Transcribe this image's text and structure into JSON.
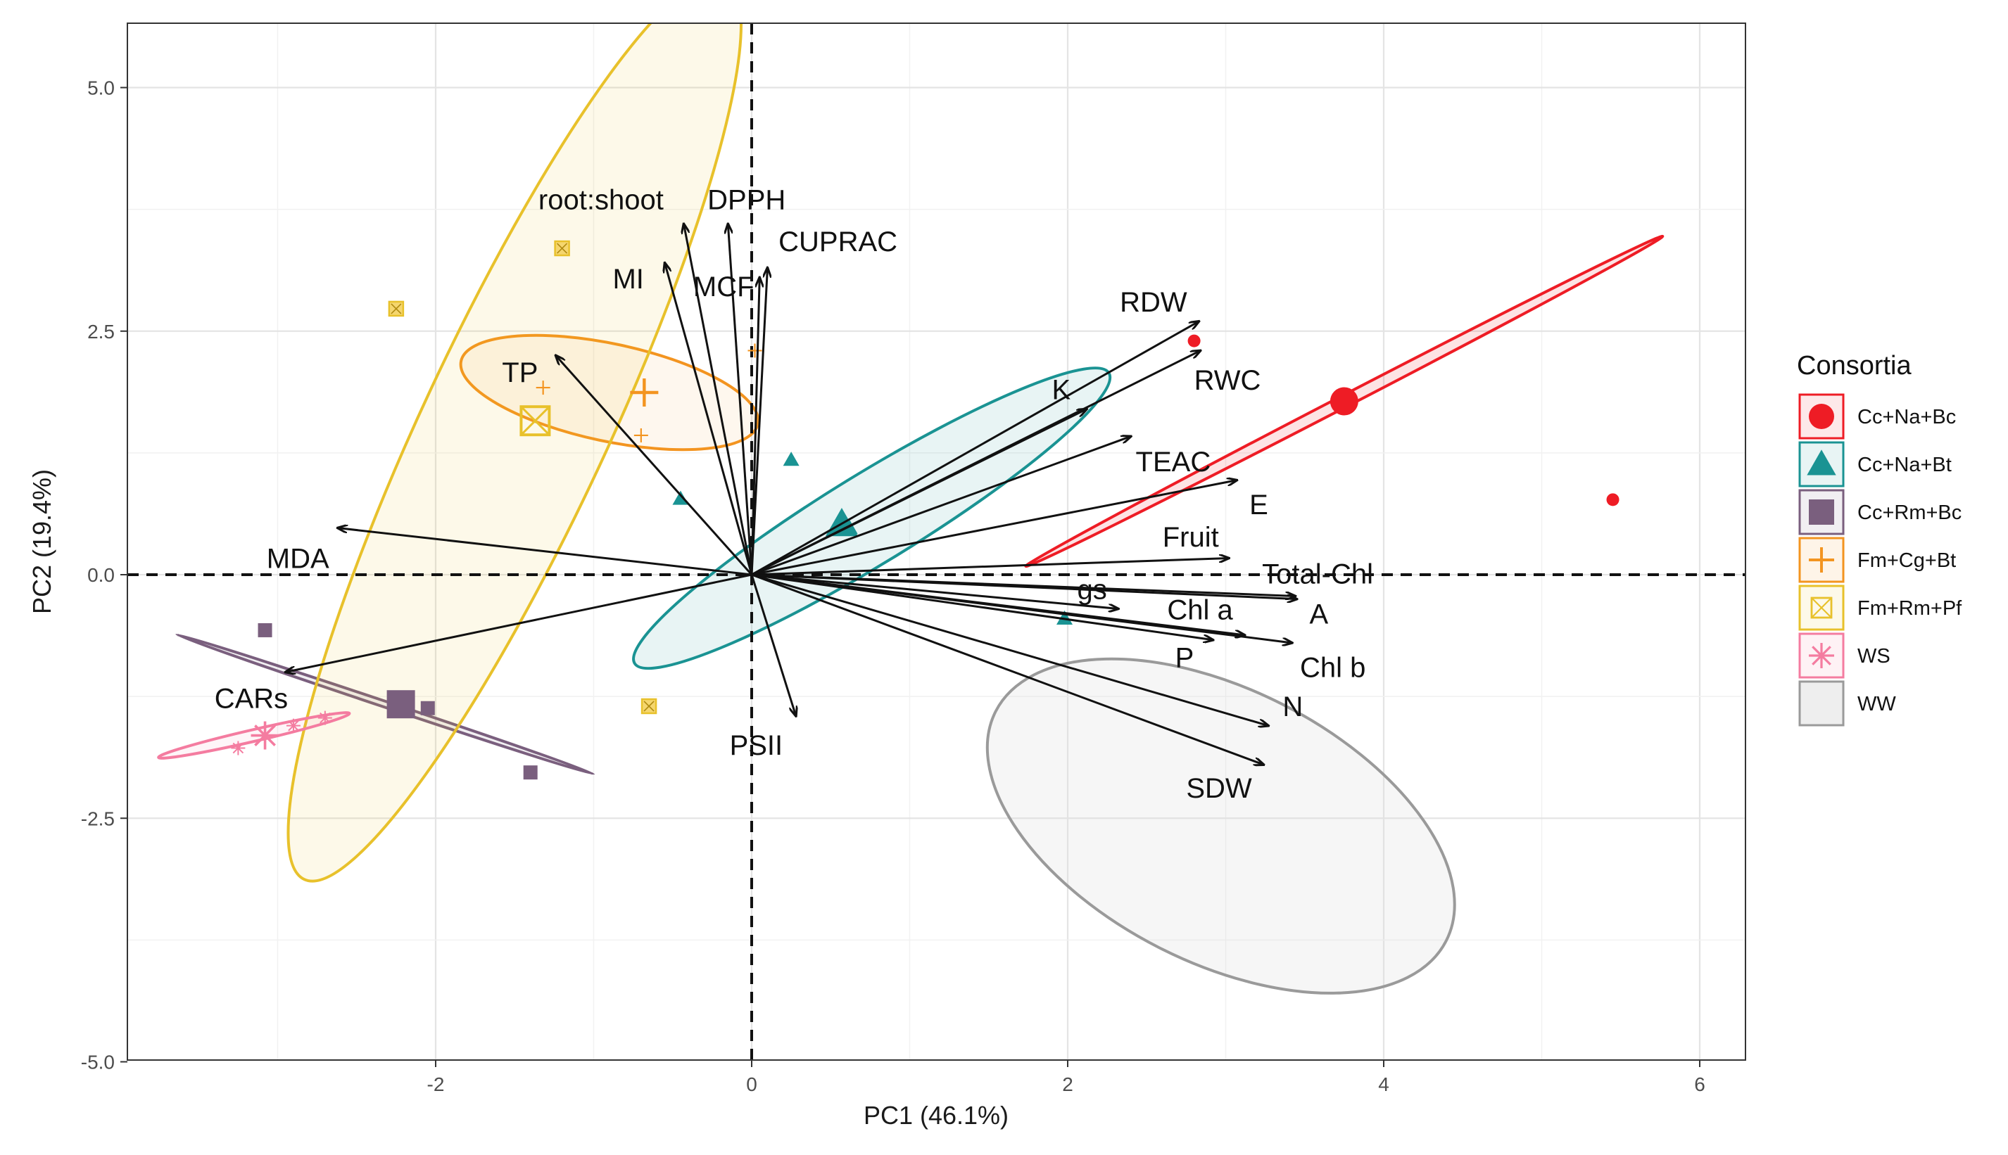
{
  "chart_data": {
    "type": "scatter",
    "subtype": "pca-biplot",
    "title": "",
    "xlabel": "PC1 (46.1%)",
    "ylabel": "PC2 (19.4%)",
    "xlim": [
      -4.0,
      6.3
    ],
    "ylim": [
      -5.0,
      5.7
    ],
    "x_ticks": [
      -2,
      0,
      2,
      4,
      6
    ],
    "y_ticks": [
      -5.0,
      -2.5,
      0.0,
      2.5,
      5.0
    ],
    "y_tick_labels": [
      "-5.0",
      "-2.5",
      "0.0",
      "2.5",
      "5.0"
    ],
    "grid": true,
    "reference_lines": {
      "x": 0,
      "y": 0,
      "style": "dashed"
    },
    "legend": {
      "title": "Consortia",
      "position": "right"
    },
    "groups": [
      {
        "name": "Cc+Na+Bc",
        "color": "#ee1c25",
        "marker": "circle",
        "ellipse": {
          "cx": 3.75,
          "cy": 1.78,
          "rx": 2.27,
          "ry": 0.06,
          "angle_deg": -27.4
        },
        "points": [
          [
            2.8,
            2.4
          ],
          [
            3.75,
            1.78
          ],
          [
            5.45,
            0.77
          ]
        ],
        "centroid": [
          3.75,
          1.78
        ]
      },
      {
        "name": "Cc+Na+Bt",
        "color": "#1a9393",
        "marker": "triangle",
        "ellipse": {
          "cx": 0.76,
          "cy": 0.58,
          "rx": 1.76,
          "ry": 0.46,
          "angle_deg": -31.5
        },
        "points": [
          [
            -0.45,
            0.78
          ],
          [
            0.25,
            1.18
          ],
          [
            0.62,
            0.48
          ],
          [
            1.98,
            -0.45
          ]
        ],
        "centroid": [
          0.57,
          0.52
        ]
      },
      {
        "name": "Cc+Rm+Bc",
        "color": "#7a5f7e",
        "marker": "square",
        "ellipse": {
          "cx": -2.32,
          "cy": -1.33,
          "rx": 1.39,
          "ry": 0.03,
          "angle_deg": 18.5
        },
        "points": [
          [
            -3.08,
            -0.57
          ],
          [
            -2.05,
            -1.37
          ],
          [
            -1.4,
            -2.03
          ]
        ],
        "centroid": [
          -2.22,
          -1.33
        ]
      },
      {
        "name": "Fm+Cg+Bt",
        "color": "#f39420",
        "marker": "plus-square",
        "ellipse": {
          "cx": -0.9,
          "cy": 1.87,
          "rx": 0.96,
          "ry": 0.5,
          "angle_deg": 12
        },
        "points": [
          [
            -1.32,
            1.92
          ],
          [
            -0.7,
            1.43
          ],
          [
            0.02,
            2.3
          ]
        ],
        "centroid": [
          -0.68,
          1.87
        ]
      },
      {
        "name": "Fm+Rm+Pf",
        "color": "#e8c12b",
        "marker": "box-x",
        "ellipse": {
          "cx": -1.5,
          "cy": 1.5,
          "rx": 3.15,
          "ry": 0.95,
          "angle_deg": -65
        },
        "points": [
          [
            -2.25,
            2.73
          ],
          [
            -1.2,
            3.35
          ],
          [
            -0.65,
            -1.35
          ]
        ],
        "centroid": [
          -1.37,
          1.58
        ]
      },
      {
        "name": "WS",
        "color": "#f47ca0",
        "marker": "asterisk",
        "ellipse": {
          "cx": -3.15,
          "cy": -1.65,
          "rx": 0.62,
          "ry": 0.06,
          "angle_deg": -13
        },
        "points": [
          [
            -3.25,
            -1.78
          ],
          [
            -2.9,
            -1.55
          ],
          [
            -2.7,
            -1.47
          ]
        ],
        "centroid": [
          -3.08,
          -1.65
        ]
      },
      {
        "name": "WW",
        "color": "#9a9a9a",
        "marker": "none",
        "ellipse": {
          "cx": 2.97,
          "cy": -2.58,
          "rx": 1.6,
          "ry": 1.4,
          "angle_deg": 27
        },
        "points": [],
        "centroid": null
      }
    ],
    "loadings": [
      {
        "name": "root:shoot",
        "x": -0.43,
        "y": 3.6
      },
      {
        "name": "DPPH",
        "x": -0.15,
        "y": 3.6
      },
      {
        "name": "CUPRAC",
        "x": 0.1,
        "y": 3.15
      },
      {
        "name": "MI",
        "x": -0.55,
        "y": 3.2
      },
      {
        "name": "MCF",
        "x": 0.05,
        "y": 3.05
      },
      {
        "name": "TP",
        "x": -1.24,
        "y": 2.25
      },
      {
        "name": "RDW",
        "x": 2.83,
        "y": 2.6
      },
      {
        "name": "RWC",
        "x": 2.84,
        "y": 2.3
      },
      {
        "name": "K",
        "x": 2.12,
        "y": 1.7
      },
      {
        "name": "TEAC",
        "x": 2.4,
        "y": 1.42
      },
      {
        "name": "E",
        "x": 3.07,
        "y": 0.97
      },
      {
        "name": "Fruit",
        "x": 3.02,
        "y": 0.17
      },
      {
        "name": "Total-Chl",
        "x": 3.44,
        "y": -0.22
      },
      {
        "name": "gs",
        "x": 2.32,
        "y": -0.35
      },
      {
        "name": "A",
        "x": 3.45,
        "y": -0.25
      },
      {
        "name": "Chl a",
        "x": 3.12,
        "y": -0.62
      },
      {
        "name": "P",
        "x": 2.92,
        "y": -0.67
      },
      {
        "name": "Chl b",
        "x": 3.42,
        "y": -0.7
      },
      {
        "name": "N",
        "x": 3.27,
        "y": -1.55
      },
      {
        "name": "SDW",
        "x": 3.24,
        "y": -1.95
      },
      {
        "name": "PSII",
        "x": 0.28,
        "y": -1.45
      },
      {
        "name": "MDA",
        "x": -2.62,
        "y": 0.48
      },
      {
        "name": "CARs",
        "x": -2.95,
        "y": -1.0
      }
    ]
  }
}
